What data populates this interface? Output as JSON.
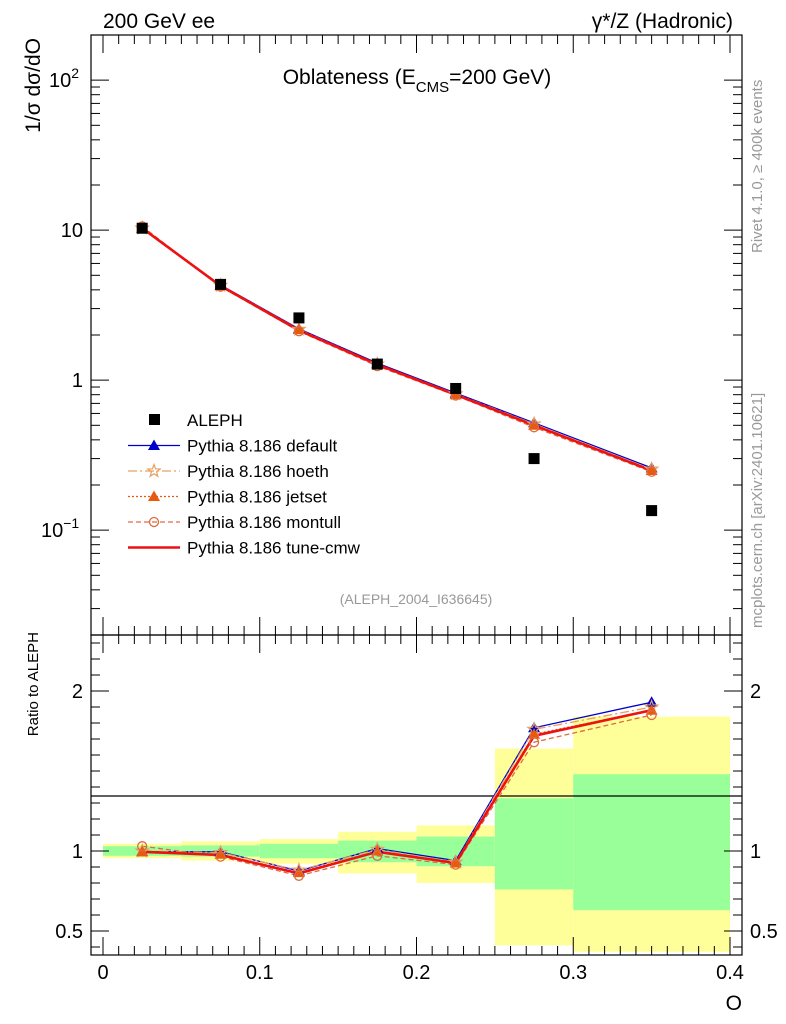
{
  "header": {
    "left": "200 GeV ee",
    "right": "γ*/Z (Hadronic)"
  },
  "side_labels": {
    "top": "Rivet 4.1.0, ≥ 400k events",
    "bottom": "mcplots.cern.ch [arXiv:2401.10621]"
  },
  "colors": {
    "data": "#000000",
    "default": "#0000cc",
    "hoeth": "#e8a060",
    "jetset": "#e85a10",
    "montull": "#e06a40",
    "tunecmw": "#ee1111",
    "band_outer": "#ffff99",
    "band_inner": "#99ff99"
  },
  "chart_data": [
    {
      "type": "line",
      "title_main": "Oblateness (E",
      "title_sub": "CMS",
      "title_end": "=200 GeV)",
      "ylabel": "1/σ  dσ/dO",
      "yscale": "log",
      "ylim": [
        0.02,
        200
      ],
      "xlim": [
        0,
        0.4
      ],
      "yticks": [
        {
          "v": 0.1,
          "base": "10",
          "exp": "−1"
        },
        {
          "v": 1,
          "base": "1",
          "exp": ""
        },
        {
          "v": 10,
          "base": "10",
          "exp": ""
        },
        {
          "v": 100,
          "base": "10",
          "exp": "2"
        }
      ],
      "reference": "(ALEPH_2004_I636645)",
      "data": {
        "name": "ALEPH",
        "x": [
          0.025,
          0.075,
          0.125,
          0.175,
          0.225,
          0.275,
          0.35
        ],
        "y": [
          10.3,
          4.35,
          2.6,
          1.28,
          0.88,
          0.3,
          0.135
        ]
      },
      "series": [
        {
          "name": "Pythia 8.186 default",
          "key": "default",
          "values": [
            10.3,
            4.3,
            2.2,
            1.3,
            0.82,
            0.52,
            0.26
          ]
        },
        {
          "name": "Pythia 8.186 hoeth",
          "key": "hoeth",
          "values": [
            10.3,
            4.28,
            2.18,
            1.28,
            0.81,
            0.51,
            0.255
          ]
        },
        {
          "name": "Pythia 8.186 jetset",
          "key": "jetset",
          "values": [
            10.25,
            4.25,
            2.17,
            1.27,
            0.8,
            0.5,
            0.25
          ]
        },
        {
          "name": "Pythia 8.186 montull",
          "key": "montull",
          "values": [
            10.6,
            4.2,
            2.12,
            1.24,
            0.79,
            0.485,
            0.245
          ]
        },
        {
          "name": "Pythia 8.186 tune-cmw",
          "key": "tunecmw",
          "values": [
            10.3,
            4.25,
            2.15,
            1.27,
            0.8,
            0.5,
            0.25
          ]
        }
      ]
    },
    {
      "type": "line",
      "ylabel": "Ratio to ALEPH",
      "xlabel": "O",
      "ylim": [
        0.35,
        2.35
      ],
      "xlim": [
        0,
        0.4
      ],
      "yticks": [
        {
          "v": 0.5,
          "label": "0.5"
        },
        {
          "v": 1,
          "label": "1"
        },
        {
          "v": 2,
          "label": "2"
        }
      ],
      "xticks": [
        {
          "v": 0,
          "label": "0"
        },
        {
          "v": 0.1,
          "label": "0.1"
        },
        {
          "v": 0.2,
          "label": "0.2"
        },
        {
          "v": 0.3,
          "label": "0.3"
        },
        {
          "v": 0.4,
          "label": "0.4"
        }
      ],
      "bins": [
        {
          "lo": 0.0,
          "hi": 0.05,
          "outer": [
            0.955,
            1.045
          ],
          "inner": [
            0.97,
            1.03
          ]
        },
        {
          "lo": 0.05,
          "hi": 0.1,
          "outer": [
            0.94,
            1.06
          ],
          "inner": [
            0.965,
            1.035
          ]
        },
        {
          "lo": 0.1,
          "hi": 0.15,
          "outer": [
            0.92,
            1.075
          ],
          "inner": [
            0.955,
            1.045
          ]
        },
        {
          "lo": 0.15,
          "hi": 0.2,
          "outer": [
            0.86,
            1.12
          ],
          "inner": [
            0.93,
            1.065
          ]
        },
        {
          "lo": 0.2,
          "hi": 0.25,
          "outer": [
            0.8,
            1.16
          ],
          "inner": [
            0.905,
            1.09
          ]
        },
        {
          "lo": 0.25,
          "hi": 0.3,
          "outer": [
            0.41,
            1.64
          ],
          "inner": [
            0.76,
            1.33
          ]
        },
        {
          "lo": 0.3,
          "hi": 0.4,
          "outer": [
            0.37,
            1.84
          ],
          "inner": [
            0.63,
            1.48
          ]
        }
      ],
      "x": [
        0.025,
        0.075,
        0.125,
        0.175,
        0.225,
        0.275,
        0.35
      ],
      "series": [
        {
          "name": "Pythia 8.186 default",
          "key": "default",
          "values": [
            0.995,
            0.995,
            0.875,
            1.015,
            0.94,
            1.77,
            1.93
          ]
        },
        {
          "name": "Pythia 8.186 hoeth",
          "key": "hoeth",
          "values": [
            1.0,
            0.99,
            0.88,
            1.01,
            0.93,
            1.76,
            1.9
          ]
        },
        {
          "name": "Pythia 8.186 jetset",
          "key": "jetset",
          "values": [
            0.995,
            0.98,
            0.865,
            1.0,
            0.925,
            1.73,
            1.88
          ]
        },
        {
          "name": "Pythia 8.186 montull",
          "key": "montull",
          "values": [
            1.03,
            0.965,
            0.845,
            0.97,
            0.915,
            1.68,
            1.85
          ]
        },
        {
          "name": "Pythia 8.186 tune-cmw",
          "key": "tunecmw",
          "values": [
            0.995,
            0.975,
            0.86,
            0.995,
            0.925,
            1.72,
            1.88
          ]
        }
      ]
    }
  ]
}
